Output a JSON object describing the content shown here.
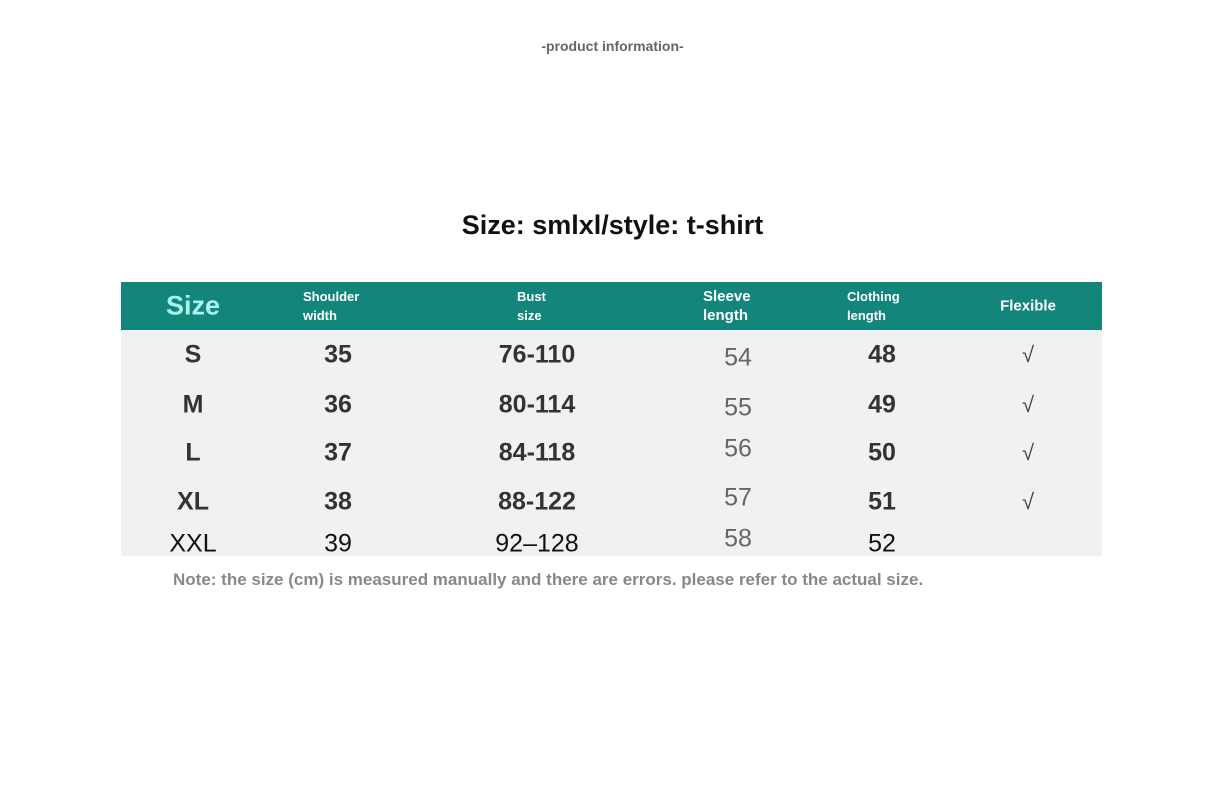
{
  "header_text": "-product information-",
  "title": "Size: smlxl/style: t-shirt",
  "table": {
    "columns": [
      "Size",
      "Shoulder width",
      "Bust size",
      "Sleeve length",
      "Clothing length",
      "Flexible"
    ],
    "rows": [
      [
        "S",
        "35",
        "76-110",
        "54",
        "48",
        "√"
      ],
      [
        "M",
        "36",
        "80-114",
        "55",
        "49",
        "√"
      ],
      [
        "L",
        "37",
        "84-118",
        "56",
        "50",
        "√"
      ],
      [
        "XL",
        "38",
        "88-122",
        "57",
        "51",
        "√"
      ],
      [
        "XXL",
        "39",
        "92–128",
        "58",
        "52",
        ""
      ]
    ]
  },
  "note": "Note: the size (cm) is measured manually and there are errors. please refer to the actual size.",
  "colors": {
    "header_bg": "#13857a",
    "size_header_text": "#a8f5ee",
    "body_bg": "#f1f1f1"
  }
}
